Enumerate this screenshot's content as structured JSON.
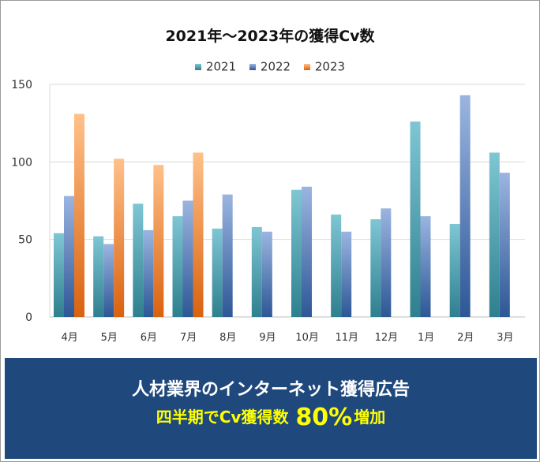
{
  "chart_data": {
    "type": "bar",
    "title": "2021年～2023年の獲得Cv数",
    "xlabel": "",
    "ylabel": "",
    "ylim": [
      0,
      150
    ],
    "yticks": [
      0,
      50,
      100,
      150
    ],
    "grid": true,
    "legend_position": "top",
    "categories": [
      "4月",
      "5月",
      "6月",
      "7月",
      "8月",
      "9月",
      "10月",
      "11月",
      "12月",
      "1月",
      "2月",
      "3月"
    ],
    "series": [
      {
        "name": "2021",
        "color": "#7fc6d4",
        "color_dark": "#2e7f8f",
        "values": [
          54,
          52,
          73,
          65,
          57,
          58,
          82,
          66,
          63,
          126,
          60,
          106
        ]
      },
      {
        "name": "2022",
        "color": "#9bb5e0",
        "color_dark": "#2d5796",
        "values": [
          78,
          47,
          56,
          75,
          79,
          55,
          84,
          55,
          70,
          65,
          143,
          93
        ]
      },
      {
        "name": "2023",
        "color": "#ffc18a",
        "color_dark": "#d9620f",
        "values": [
          131,
          102,
          98,
          106,
          null,
          null,
          null,
          null,
          null,
          null,
          null,
          null
        ]
      }
    ]
  },
  "banner": {
    "line1": "人材業界のインターネット獲得広告",
    "line2_prefix": "四半期でCv獲得数",
    "line2_highlight": "80%",
    "line2_suffix": "増加",
    "background": "#1f497d",
    "highlight_color": "#ffff00"
  }
}
